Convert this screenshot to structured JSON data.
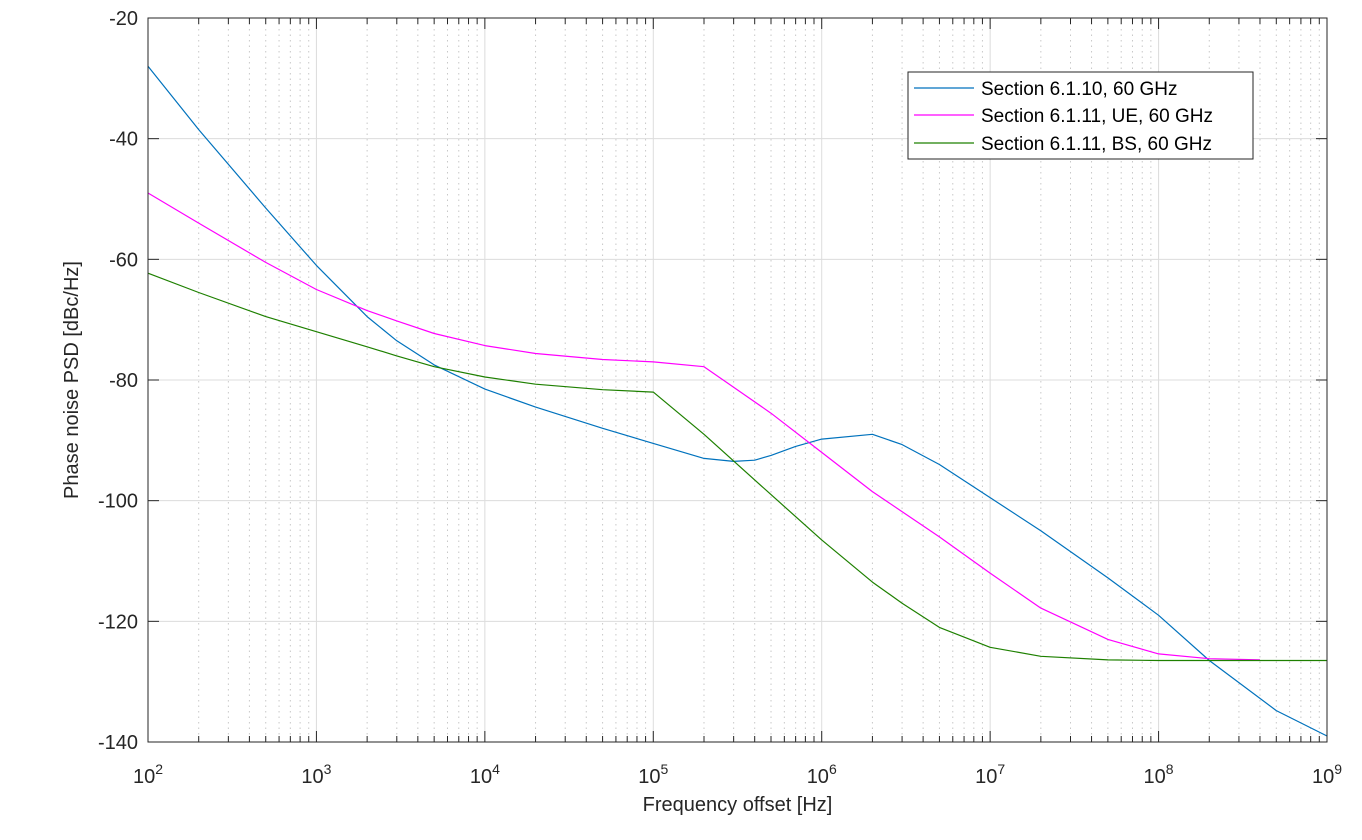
{
  "chart_data": {
    "type": "line",
    "title": "",
    "xlabel": "Frequency offset [Hz]",
    "ylabel": "Phase noise PSD [dBc/Hz]",
    "x_scale": "log",
    "xlim": [
      100,
      1000000000
    ],
    "ylim": [
      -140,
      -20
    ],
    "x_ticks": [
      100,
      1000,
      10000,
      100000,
      1000000,
      10000000,
      100000000,
      1000000000
    ],
    "x_tick_labels": [
      {
        "base": "10",
        "exp": "2"
      },
      {
        "base": "10",
        "exp": "3"
      },
      {
        "base": "10",
        "exp": "4"
      },
      {
        "base": "10",
        "exp": "5"
      },
      {
        "base": "10",
        "exp": "6"
      },
      {
        "base": "10",
        "exp": "7"
      },
      {
        "base": "10",
        "exp": "8"
      },
      {
        "base": "10",
        "exp": "9"
      }
    ],
    "y_ticks": [
      -140,
      -120,
      -100,
      -80,
      -60,
      -40,
      -20
    ],
    "y_tick_labels": [
      "-140",
      "-120",
      "-100",
      "-80",
      "-60",
      "-40",
      "-20"
    ],
    "grid": true,
    "minor_grid": true,
    "legend_position": "top-right",
    "series": [
      {
        "name": "Section 6.1.10, 60 GHz",
        "color": "#0072BD",
        "x": [
          100,
          200,
          500,
          1000,
          2000,
          3000,
          5000,
          10000,
          20000,
          50000,
          100000,
          200000,
          300000,
          400000,
          500000,
          700000,
          1000000,
          2000000,
          3000000,
          5000000,
          10000000,
          20000000,
          50000000,
          100000000,
          200000000,
          500000000,
          1000000000
        ],
        "y": [
          -28,
          -38.5,
          -51.5,
          -61,
          -69.5,
          -73.5,
          -77.5,
          -81.5,
          -84.5,
          -88,
          -90.5,
          -93,
          -93.5,
          -93.3,
          -92.5,
          -91,
          -89.8,
          -89,
          -90.7,
          -94,
          -99.5,
          -105,
          -112.8,
          -119,
          -126.5,
          -134.8,
          -139
        ]
      },
      {
        "name": "Section 6.1.11, UE, 60 GHz",
        "color": "#FF00FF",
        "x": [
          100,
          200,
          500,
          1000,
          2000,
          3000,
          5000,
          10000,
          20000,
          50000,
          100000,
          200000,
          500000,
          1000000,
          2000000,
          5000000,
          10000000,
          20000000,
          50000000,
          100000000,
          200000000,
          400000000
        ],
        "y": [
          -49,
          -54,
          -60.5,
          -65,
          -68.5,
          -70.2,
          -72.3,
          -74.3,
          -75.6,
          -76.6,
          -77,
          -77.8,
          -85.5,
          -92,
          -98.5,
          -106,
          -112,
          -117.8,
          -123,
          -125.4,
          -126.2,
          -126.4
        ]
      },
      {
        "name": "Section 6.1.11, BS, 60 GHz",
        "color": "#1E8000",
        "x": [
          100,
          200,
          500,
          1000,
          2000,
          3000,
          5000,
          10000,
          20000,
          50000,
          100000,
          200000,
          500000,
          1000000,
          2000000,
          3000000,
          5000000,
          10000000,
          20000000,
          50000000,
          100000000,
          1000000000
        ],
        "y": [
          -62.3,
          -65.5,
          -69.5,
          -72,
          -74.5,
          -76,
          -77.8,
          -79.5,
          -80.7,
          -81.6,
          -82,
          -89,
          -99,
          -106.5,
          -113.5,
          -117,
          -121,
          -124.3,
          -125.8,
          -126.4,
          -126.5,
          -126.5
        ]
      }
    ]
  }
}
